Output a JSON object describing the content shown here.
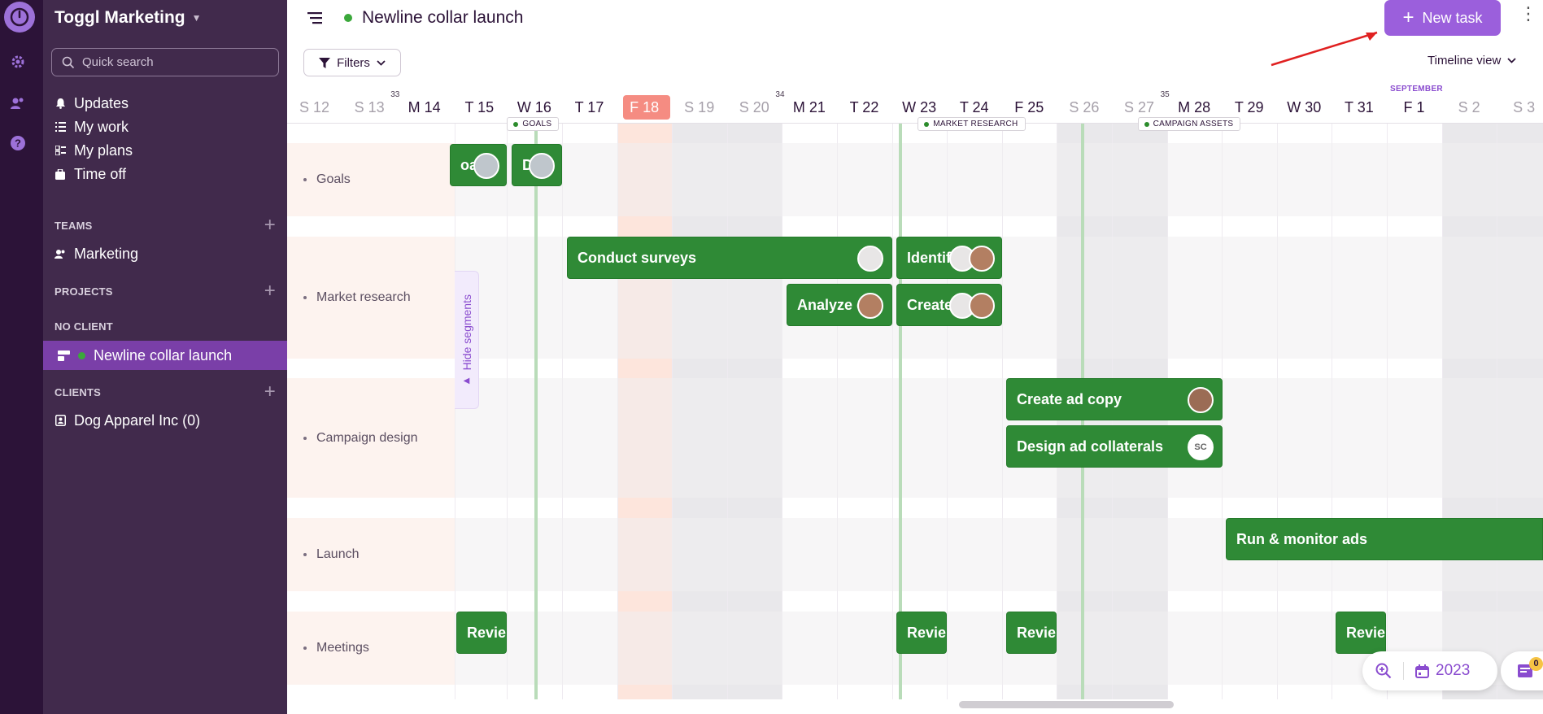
{
  "workspace": {
    "name": "Toggl Marketing"
  },
  "search": {
    "placeholder": "Quick search"
  },
  "nav": [
    {
      "label": "Updates",
      "icon": "bell-icon"
    },
    {
      "label": "My work",
      "icon": "list-icon"
    },
    {
      "label": "My plans",
      "icon": "plans-icon"
    },
    {
      "label": "Time off",
      "icon": "suitcase-icon"
    }
  ],
  "sections": {
    "teams": "TEAMS",
    "projects": "PROJECTS",
    "no_client": "NO CLIENT",
    "clients": "CLIENTS"
  },
  "teams": [
    {
      "label": "Marketing"
    }
  ],
  "projects": [
    {
      "label": "Newline collar launch",
      "status_color": "#3ba83b"
    }
  ],
  "clients": [
    {
      "label": "Dog Apparel Inc (0)"
    }
  ],
  "header": {
    "project_title": "Newline collar launch",
    "new_task_label": "New task",
    "filters_label": "Filters",
    "view_label": "Timeline view"
  },
  "timeline": {
    "dates": [
      "S 12",
      "S 13",
      "M 14",
      "T 15",
      "W 16",
      "T 17",
      "F 18",
      "S 19",
      "S 20",
      "M 21",
      "T 22",
      "W 23",
      "T 24",
      "F 25",
      "S 26",
      "S 27",
      "M 28",
      "T 29",
      "W 30",
      "T 31",
      "F 1",
      "S 2",
      "S 3"
    ],
    "weekend_indexes": [
      0,
      1,
      7,
      8,
      14,
      15,
      21,
      22
    ],
    "today_index": 6,
    "week_numbers": [
      {
        "label": "33",
        "at": 2
      },
      {
        "label": "34",
        "at": 9
      },
      {
        "label": "35",
        "at": 16
      }
    ],
    "month": {
      "label": "SEPTEMBER",
      "at": 20
    },
    "milestones": [
      {
        "label": "GOALS",
        "at": 4
      },
      {
        "label": "MARKET RESEARCH",
        "at": 12
      },
      {
        "label": "CAMPAIGN ASSETS",
        "at": 16
      }
    ],
    "hide_segments_label": "Hide segments"
  },
  "segments": [
    {
      "label": "Goals"
    },
    {
      "label": "Market research"
    },
    {
      "label": "Campaign design"
    },
    {
      "label": "Launch"
    },
    {
      "label": "Meetings"
    }
  ],
  "tasks": [
    {
      "label": "oals",
      "avatar": "photo"
    },
    {
      "label": "D",
      "avatar": "photo"
    },
    {
      "label": "Conduct surveys",
      "avatar": "photo"
    },
    {
      "label": "Identif",
      "avatar": "photo"
    },
    {
      "label": "Analyze d",
      "avatar": "photo"
    },
    {
      "label": "Create",
      "avatar": "photo"
    },
    {
      "label": "Create ad copy",
      "avatar": "photo"
    },
    {
      "label": "Design ad collaterals",
      "avatar_initials": "SC"
    },
    {
      "label": "Run & monitor ads"
    },
    {
      "label": "Revie"
    },
    {
      "label": "Revie"
    },
    {
      "label": "Revie"
    },
    {
      "label": "Revie"
    }
  ],
  "footer": {
    "year": "2023",
    "notification_count": "0"
  },
  "colors": {
    "accent": "#9b5fdc",
    "task_green": "#2f8a36",
    "sidebar": "#412a4c",
    "today": "#f58c82"
  }
}
